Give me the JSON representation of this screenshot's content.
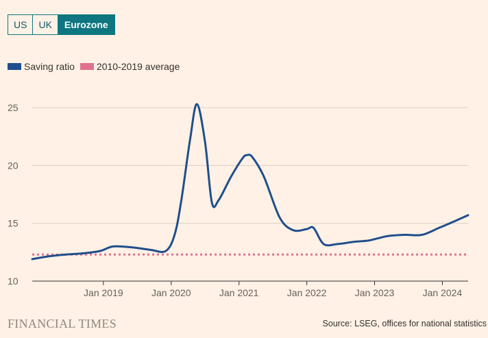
{
  "tabs": [
    {
      "label": "US",
      "active": false
    },
    {
      "label": "UK",
      "active": false
    },
    {
      "label": "Eurozone",
      "active": true
    }
  ],
  "legend": {
    "series_label": "Saving ratio",
    "average_label": "2010-2019 average"
  },
  "colors": {
    "series": "#1f4e8c",
    "average": "#e0718f",
    "grid": "#d9cfc6",
    "axis": "#33302e"
  },
  "footer": {
    "brand": "FINANCIAL TIMES",
    "source": "Source: LSEG, offices for national statistics"
  },
  "chart_data": {
    "type": "line",
    "title": "",
    "xlabel": "",
    "ylabel": "",
    "ylim": [
      10,
      25
    ],
    "yticks": [
      10,
      15,
      20,
      25
    ],
    "xticks": [
      {
        "label": "Jan 2019",
        "t": 2019.0
      },
      {
        "label": "Jan 2020",
        "t": 2020.0
      },
      {
        "label": "Jan 2021",
        "t": 2021.0
      },
      {
        "label": "Jan 2022",
        "t": 2022.0
      },
      {
        "label": "Jan 2023",
        "t": 2023.0
      },
      {
        "label": "Jan 2024",
        "t": 2024.0
      }
    ],
    "xlim": [
      2017.95,
      2024.38
    ],
    "series": [
      {
        "name": "Saving ratio",
        "x": [
          2017.95,
          2018.2,
          2018.45,
          2018.7,
          2018.95,
          2019.15,
          2019.45,
          2019.7,
          2019.92,
          2020.05,
          2020.15,
          2020.28,
          2020.38,
          2020.5,
          2020.6,
          2020.7,
          2020.88,
          2021.05,
          2021.12,
          2021.2,
          2021.37,
          2021.6,
          2021.8,
          2022.0,
          2022.1,
          2022.25,
          2022.45,
          2022.7,
          2022.9,
          2023.05,
          2023.2,
          2023.45,
          2023.7,
          2023.95,
          2024.15,
          2024.38
        ],
        "values": [
          11.9,
          12.15,
          12.3,
          12.4,
          12.6,
          13.0,
          12.9,
          12.7,
          12.6,
          14.0,
          17.0,
          22.3,
          25.3,
          22.0,
          16.8,
          17.0,
          19.0,
          20.6,
          20.9,
          20.7,
          19.0,
          15.5,
          14.4,
          14.5,
          14.6,
          13.2,
          13.2,
          13.4,
          13.5,
          13.7,
          13.9,
          14.0,
          14.0,
          14.6,
          15.1,
          15.7
        ]
      },
      {
        "name": "2010-2019 average",
        "x": [
          2017.95,
          2024.38
        ],
        "values": [
          12.3,
          12.3
        ],
        "style": "dotted"
      }
    ]
  }
}
